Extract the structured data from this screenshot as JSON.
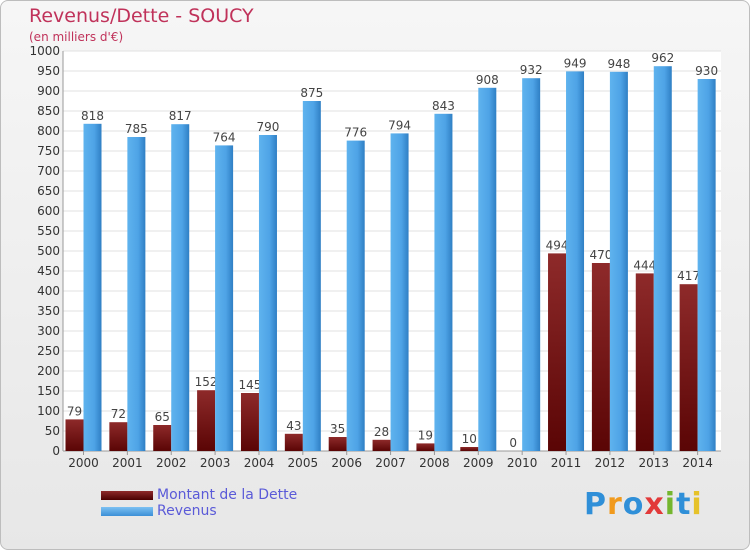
{
  "header": {
    "title": "Revenus/Dette - SOUCY",
    "subtitle": "(en milliers d'€)"
  },
  "logo": {
    "text": "Proxiti",
    "colors": [
      "#2f8fd8",
      "#f19a1d",
      "#2f8fd8",
      "#e23a3a",
      "#74b62e",
      "#2f8fd8",
      "#e6c229"
    ]
  },
  "chart_data": {
    "type": "bar",
    "title": "Revenus/Dette - SOUCY",
    "subtitle": "(en milliers d'€)",
    "categories": [
      "2000",
      "2001",
      "2002",
      "2003",
      "2004",
      "2005",
      "2006",
      "2007",
      "2008",
      "2009",
      "2010",
      "2011",
      "2012",
      "2013",
      "2014"
    ],
    "series": [
      {
        "name": "Montant de la Dette",
        "color": "#7a1212",
        "values": [
          79,
          72,
          65,
          152,
          145,
          43,
          35,
          28,
          19,
          10,
          0,
          494,
          470,
          444,
          417
        ]
      },
      {
        "name": "Revenus",
        "color": "#4ea3e6",
        "values": [
          818,
          785,
          817,
          764,
          790,
          875,
          776,
          794,
          843,
          908,
          932,
          949,
          948,
          962,
          930
        ]
      }
    ],
    "ylim": [
      0,
      1000
    ],
    "ytick_step": 50,
    "grid": true,
    "legend": "bottom-left"
  }
}
